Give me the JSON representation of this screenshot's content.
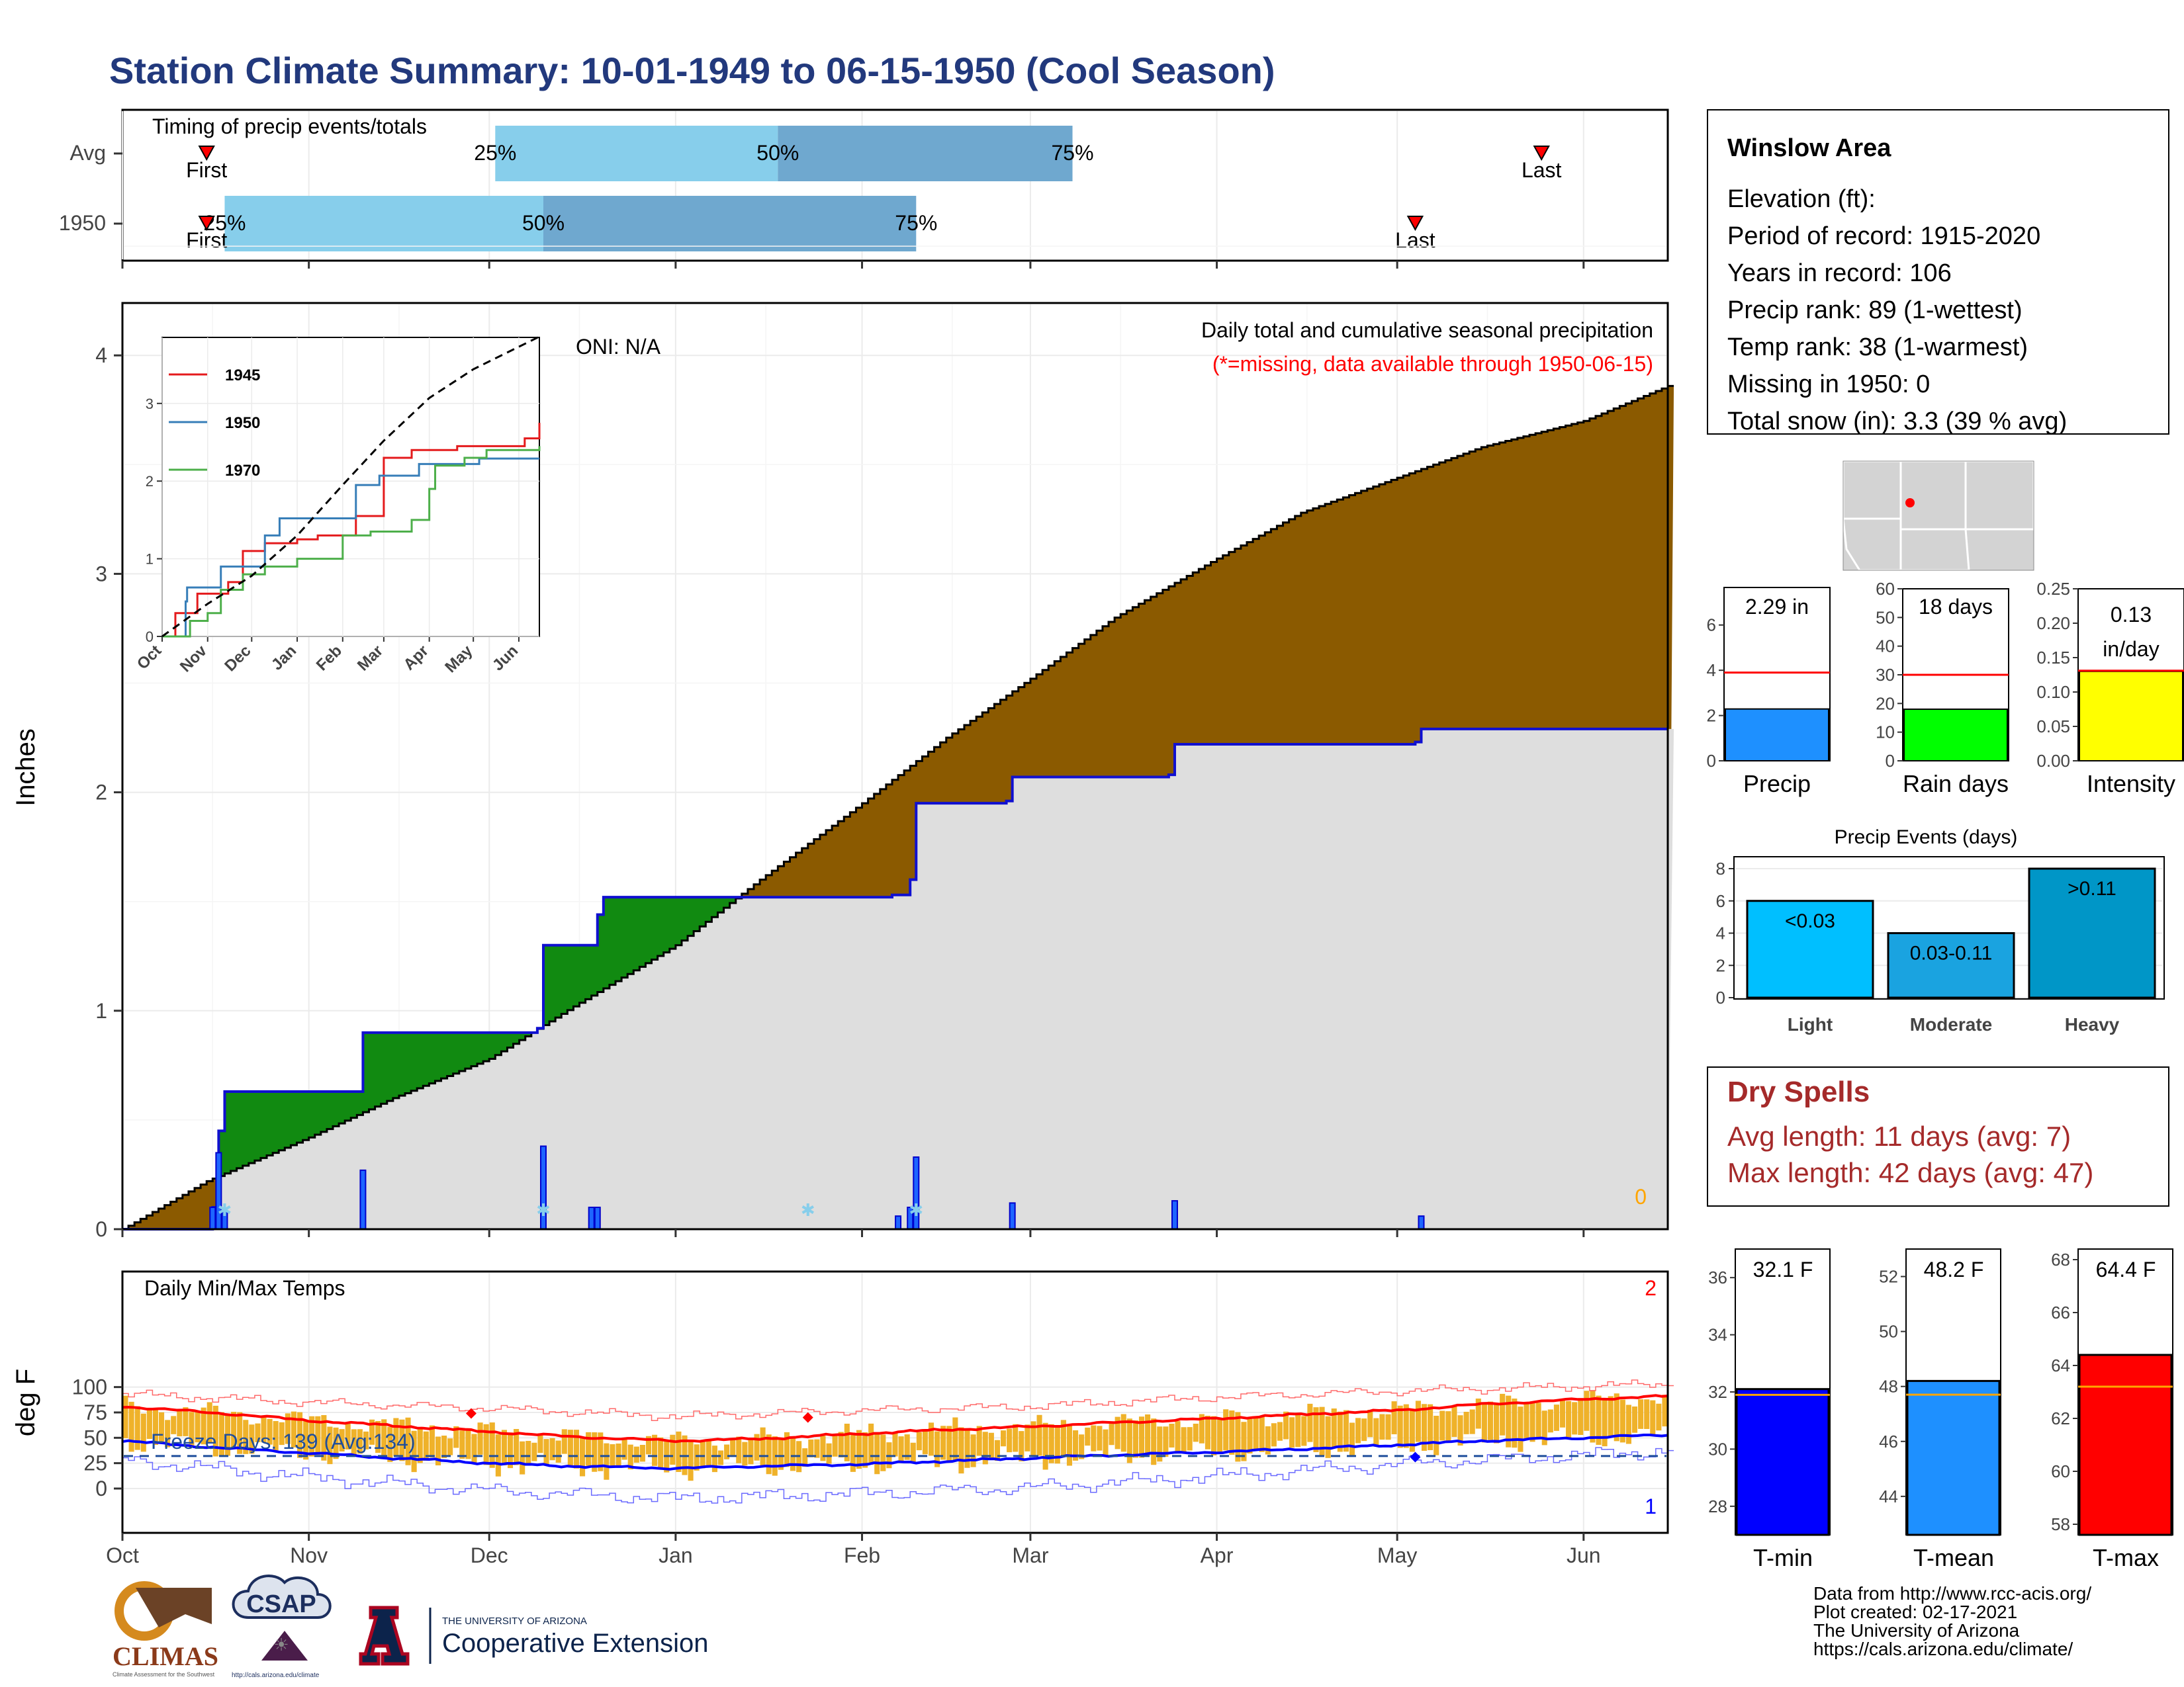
{
  "title": "Station Climate Summary: 10-01-1949 to 06-15-1950 (Cool Season)",
  "colors": {
    "title": "#22397d",
    "cum_avg": "#8b5a00",
    "cum_year": "#dedede",
    "cum_year_line": "#1010d0",
    "above_avg": "#118a11",
    "timing_light": "#87ceeb",
    "timing_dark": "#6fa8cf",
    "temp_bar": "#efb22a",
    "tmax_line": "#ff0000",
    "tmin_line": "#0000ff",
    "dry_spell_text": "#a52a2a"
  },
  "month_labels": [
    "Oct",
    "Nov",
    "Dec",
    "Jan",
    "Feb",
    "Mar",
    "Apr",
    "May",
    "Jun"
  ],
  "timing": {
    "title": "Timing of precip events/totals",
    "rows": [
      {
        "label": "Avg",
        "first_label": "First",
        "last_label": "Last",
        "first_date": "1949-10-15",
        "q25_date": "1949-12-02",
        "q50_date": "1950-01-18",
        "q75_date": "1950-03-08",
        "last_date": "1950-05-25",
        "q25_label": "25%",
        "q50_label": "50%",
        "q75_label": "75%"
      },
      {
        "label": "1950",
        "first_label": "First",
        "last_label": "Last",
        "first_date": "1949-10-15",
        "q25_date": "1949-10-18",
        "q50_date": "1949-12-10",
        "q75_date": "1950-02-10",
        "last_date": "1950-05-04",
        "q25_label": "25%",
        "q50_label": "50%",
        "q75_label": "75%"
      }
    ]
  },
  "precip_panel": {
    "ylabel": "Inches",
    "yticks": [
      "0",
      "1",
      "2",
      "3",
      "4"
    ],
    "label": "Daily total and cumulative seasonal precipitation",
    "missing_note": "(*=missing, data available through 1950-06-15)",
    "oni": "ONI: N/A",
    "missing_count": "0"
  },
  "chart_data": [
    {
      "type": "area",
      "title": "Daily total and cumulative seasonal precipitation",
      "ylabel": "Inches",
      "ylim": [
        0,
        4.2
      ],
      "series": [
        {
          "name": "Avg",
          "points": [
            [
              "1949-10-01",
              0.0
            ],
            [
              "1949-10-15",
              0.22
            ],
            [
              "1949-11-01",
              0.42
            ],
            [
              "1949-11-15",
              0.6
            ],
            [
              "1949-12-01",
              0.78
            ],
            [
              "1949-12-15",
              1.02
            ],
            [
              "1950-01-01",
              1.3
            ],
            [
              "1950-01-15",
              1.6
            ],
            [
              "1950-02-01",
              1.95
            ],
            [
              "1950-02-15",
              2.25
            ],
            [
              "1950-03-01",
              2.52
            ],
            [
              "1950-03-15",
              2.8
            ],
            [
              "1950-04-01",
              3.07
            ],
            [
              "1950-04-15",
              3.28
            ],
            [
              "1950-05-01",
              3.44
            ],
            [
              "1950-05-15",
              3.58
            ],
            [
              "1950-06-01",
              3.7
            ],
            [
              "1950-06-15",
              3.86
            ]
          ]
        },
        {
          "name": "1950",
          "points": [
            [
              "1949-10-01",
              0.0
            ],
            [
              "1949-10-16",
              0.1
            ],
            [
              "1949-10-17",
              0.45
            ],
            [
              "1949-10-18",
              0.63
            ],
            [
              "1949-11-09",
              0.63
            ],
            [
              "1949-11-10",
              0.9
            ],
            [
              "1949-12-09",
              0.92
            ],
            [
              "1949-12-10",
              1.3
            ],
            [
              "1949-12-18",
              1.3
            ],
            [
              "1949-12-19",
              1.44
            ],
            [
              "1949-12-20",
              1.52
            ],
            [
              "1950-02-06",
              1.53
            ],
            [
              "1950-02-09",
              1.6
            ],
            [
              "1950-02-10",
              1.95
            ],
            [
              "1950-02-25",
              1.96
            ],
            [
              "1950-02-26",
              2.07
            ],
            [
              "1950-03-24",
              2.08
            ],
            [
              "1950-03-25",
              2.22
            ],
            [
              "1950-05-04",
              2.23
            ],
            [
              "1950-05-05",
              2.29
            ],
            [
              "1950-06-15",
              2.29
            ]
          ]
        }
      ],
      "daily_bars": [
        [
          "1949-10-16",
          0.1
        ],
        [
          "1949-10-17",
          0.35
        ],
        [
          "1949-10-18",
          0.08
        ],
        [
          "1949-11-10",
          0.27
        ],
        [
          "1949-12-10",
          0.38
        ],
        [
          "1949-12-18",
          0.1
        ],
        [
          "1949-12-19",
          0.1
        ],
        [
          "1950-02-07",
          0.06
        ],
        [
          "1950-02-09",
          0.1
        ],
        [
          "1950-02-10",
          0.33
        ],
        [
          "1950-02-26",
          0.12
        ],
        [
          "1950-03-25",
          0.13
        ],
        [
          "1950-05-05",
          0.06
        ]
      ]
    },
    {
      "type": "line",
      "title": "Cumulative precipitation inset",
      "xlabels": [
        "Oct",
        "Nov",
        "Dec",
        "Jan",
        "Feb",
        "Mar",
        "Apr",
        "May",
        "Jun"
      ],
      "ylim": [
        0,
        4.1
      ],
      "series": [
        {
          "name": "1945",
          "points": [
            [
              "1944-10-01",
              0.0
            ],
            [
              "1944-10-10",
              0.3
            ],
            [
              "1944-10-25",
              0.55
            ],
            [
              "1944-11-15",
              0.7
            ],
            [
              "1944-11-25",
              1.1
            ],
            [
              "1944-12-10",
              1.2
            ],
            [
              "1945-01-01",
              1.25
            ],
            [
              "1945-01-15",
              1.3
            ],
            [
              "1945-02-10",
              1.55
            ],
            [
              "1945-03-01",
              2.3
            ],
            [
              "1945-03-20",
              2.4
            ],
            [
              "1945-04-20",
              2.45
            ],
            [
              "1945-06-05",
              2.55
            ],
            [
              "1945-06-15",
              2.75
            ]
          ]
        },
        {
          "name": "1950",
          "points": [
            [
              "1949-10-01",
              0.0
            ],
            [
              "1949-10-17",
              0.45
            ],
            [
              "1949-10-18",
              0.63
            ],
            [
              "1949-11-10",
              0.9
            ],
            [
              "1949-12-10",
              1.3
            ],
            [
              "1949-12-20",
              1.52
            ],
            [
              "1950-02-10",
              1.95
            ],
            [
              "1950-02-26",
              2.07
            ],
            [
              "1950-03-25",
              2.22
            ],
            [
              "1950-05-05",
              2.29
            ],
            [
              "1950-06-15",
              2.29
            ]
          ]
        },
        {
          "name": "1970",
          "points": [
            [
              "1969-10-01",
              0.0
            ],
            [
              "1969-10-20",
              0.2
            ],
            [
              "1969-11-01",
              0.3
            ],
            [
              "1969-11-10",
              0.6
            ],
            [
              "1969-11-25",
              0.8
            ],
            [
              "1969-12-10",
              0.9
            ],
            [
              "1970-01-01",
              1.0
            ],
            [
              "1970-02-01",
              1.3
            ],
            [
              "1970-02-20",
              1.35
            ],
            [
              "1970-03-20",
              1.5
            ],
            [
              "1970-04-01",
              1.9
            ],
            [
              "1970-04-05",
              2.2
            ],
            [
              "1970-04-25",
              2.3
            ],
            [
              "1970-05-10",
              2.4
            ],
            [
              "1970-06-15",
              2.45
            ]
          ]
        },
        {
          "name": "Avg",
          "points": [
            [
              "1949-10-01",
              0.0
            ],
            [
              "1949-11-01",
              0.42
            ],
            [
              "1949-12-01",
              0.78
            ],
            [
              "1950-01-01",
              1.3
            ],
            [
              "1950-02-01",
              1.95
            ],
            [
              "1950-03-01",
              2.52
            ],
            [
              "1950-04-01",
              3.07
            ],
            [
              "1950-05-01",
              3.44
            ],
            [
              "1950-06-15",
              3.86
            ]
          ]
        }
      ]
    },
    {
      "type": "bar",
      "title": "Daily Min/Max Temps",
      "ylabel": "deg F",
      "ylim": [
        -20,
        110
      ],
      "freeze_line": 32,
      "series": [
        {
          "name": "Avg max",
          "points": [
            [
              "1949-10-01",
              81
            ],
            [
              "1949-10-20",
              73
            ],
            [
              "1949-11-01",
              67
            ],
            [
              "1949-11-15",
              62
            ],
            [
              "1949-12-01",
              56
            ],
            [
              "1949-12-15",
              51
            ],
            [
              "1950-01-01",
              47
            ],
            [
              "1950-01-15",
              49
            ],
            [
              "1950-02-01",
              54
            ],
            [
              "1950-02-15",
              58
            ],
            [
              "1950-03-01",
              61
            ],
            [
              "1950-03-15",
              65
            ],
            [
              "1950-04-01",
              69
            ],
            [
              "1950-04-15",
              73
            ],
            [
              "1950-05-01",
              77
            ],
            [
              "1950-05-15",
              83
            ],
            [
              "1950-06-01",
              88
            ],
            [
              "1950-06-15",
              91
            ]
          ]
        },
        {
          "name": "Avg min",
          "points": [
            [
              "1949-10-01",
              47
            ],
            [
              "1949-10-15",
              41
            ],
            [
              "1949-11-01",
              35
            ],
            [
              "1949-11-15",
              30
            ],
            [
              "1949-12-01",
              25
            ],
            [
              "1949-12-15",
              22
            ],
            [
              "1950-01-01",
              20
            ],
            [
              "1950-01-15",
              22
            ],
            [
              "1950-02-01",
              24
            ],
            [
              "1950-02-15",
              27
            ],
            [
              "1950-03-01",
              30
            ],
            [
              "1950-03-15",
              33
            ],
            [
              "1950-04-01",
              36
            ],
            [
              "1950-04-15",
              39
            ],
            [
              "1950-05-01",
              43
            ],
            [
              "1950-05-15",
              47
            ],
            [
              "1950-06-01",
              50
            ],
            [
              "1950-06-15",
              53
            ]
          ]
        },
        {
          "name": "Record high",
          "points": [
            [
              "1949-10-01",
              93
            ],
            [
              "1949-11-01",
              85
            ],
            [
              "1949-12-01",
              79
            ],
            [
              "1950-01-01",
              71
            ],
            [
              "1950-02-01",
              77
            ],
            [
              "1950-03-01",
              81
            ],
            [
              "1950-04-01",
              90
            ],
            [
              "1950-05-01",
              96
            ],
            [
              "1950-06-15",
              103
            ]
          ]
        },
        {
          "name": "Record low",
          "points": [
            [
              "1949-10-01",
              28
            ],
            [
              "1949-11-01",
              11
            ],
            [
              "1949-12-01",
              -2
            ],
            [
              "1950-01-01",
              -10
            ],
            [
              "1950-02-01",
              -5
            ],
            [
              "1950-03-01",
              1
            ],
            [
              "1950-04-01",
              12
            ],
            [
              "1950-05-01",
              24
            ],
            [
              "1950-06-15",
              37
            ]
          ]
        }
      ],
      "record_high_days": [
        [
          "1949-11-28",
          74
        ],
        [
          "1950-01-23",
          70
        ]
      ],
      "record_low_days": [
        [
          "1950-05-04",
          31
        ]
      ]
    },
    {
      "type": "bar",
      "title": "Precip summary",
      "categories": [
        "Precip",
        "Rain days",
        "Intensity"
      ],
      "values": [
        2.29,
        18,
        0.13
      ],
      "averages": [
        3.9,
        30,
        0.131
      ],
      "labels": [
        "2.29 in",
        "18 days",
        "0.13 in/day"
      ]
    },
    {
      "type": "bar",
      "title": "Precip Events (days)",
      "categories": [
        "Light",
        "Moderate",
        "Heavy"
      ],
      "values": [
        6,
        4,
        8
      ],
      "labels": [
        "<0.03",
        "0.03-0.11",
        ">0.11"
      ]
    },
    {
      "type": "bar",
      "title": "Temperature summary",
      "categories": [
        "T-min",
        "T-mean",
        "T-max"
      ],
      "values": [
        32.1,
        48.2,
        64.4
      ],
      "averages": [
        31.9,
        47.7,
        63.2
      ],
      "labels": [
        "32.1 F",
        "48.2 F",
        "64.4 F"
      ]
    }
  ],
  "temp_panel": {
    "label": "Daily Min/Max Temps",
    "ylabel": "deg F",
    "yticks": [
      "0",
      "25",
      "50",
      "75",
      "100"
    ],
    "freeze_text": "Freeze Days: 139 (Avg:134)",
    "count_high": "2",
    "count_low": "1"
  },
  "inset": {
    "yticks": [
      "0",
      "1",
      "2",
      "3"
    ],
    "legend": [
      "1945",
      "1950",
      "1970"
    ],
    "legend_colors": [
      "#e41a1c",
      "#377eb8",
      "#4daf4a"
    ]
  },
  "station_box": {
    "name": "Winslow Area",
    "lines": [
      "Elevation (ft):",
      "Period of record: 1915-2020",
      "Years in record: 106",
      "Precip rank: 89 (1-wettest)",
      "Temp rank: 38 (1-warmest)",
      "Missing in 1950: 0",
      "Total snow (in): 3.3 (39 % avg)"
    ]
  },
  "small_bars": {
    "precip": {
      "label": "Precip",
      "value_text": "2.29 in",
      "yticks": [
        "0",
        "2",
        "4",
        "6"
      ],
      "color": "#1e90ff"
    },
    "raindays": {
      "label": "Rain days",
      "value_text": "18 days",
      "yticks": [
        "0",
        "10",
        "20",
        "30",
        "40",
        "50",
        "60"
      ],
      "color": "#00ff00"
    },
    "intensity": {
      "label": "Intensity",
      "value_text1": "0.13",
      "value_text2": "in/day",
      "yticks": [
        "0.00",
        "0.05",
        "0.10",
        "0.15",
        "0.20",
        "0.25"
      ],
      "color": "#ffff00"
    }
  },
  "events": {
    "title": "Precip Events (days)",
    "yticks": [
      "0",
      "2",
      "4",
      "6",
      "8"
    ],
    "colors": [
      "#00bfff",
      "#1aa3e0",
      "#0096c7"
    ]
  },
  "dry_spells": {
    "title": "Dry Spells",
    "avg_line": "Avg length: 11 days (avg: 7)",
    "max_line": "Max length: 42 days (avg: 47)"
  },
  "temp_bars": {
    "tmin": {
      "label": "T-min",
      "value_text": "32.1 F",
      "yticks": [
        "28",
        "30",
        "32",
        "34",
        "36"
      ],
      "color": "#0000ff"
    },
    "tmean": {
      "label": "T-mean",
      "value_text": "48.2 F",
      "yticks": [
        "44",
        "46",
        "48",
        "50",
        "52"
      ],
      "color": "#1e90ff"
    },
    "tmax": {
      "label": "T-max",
      "value_text": "64.4 F",
      "yticks": [
        "58",
        "60",
        "62",
        "64",
        "66",
        "68"
      ],
      "color": "#ff0000"
    }
  },
  "credits": [
    "Data from http://www.rcc-acis.org/",
    "Plot created: 02-17-2021",
    "The University of Arizona",
    "https://cals.arizona.edu/climate/"
  ],
  "logos": {
    "climas": "CLIMAS",
    "climas_sub": "Climate Assessment for the Southwest",
    "csap": "CSAP",
    "csap_url": "http://cals.arizona.edu/climate",
    "ua_small": "THE UNIVERSITY OF ARIZONA",
    "ua_big": "Cooperative Extension"
  }
}
